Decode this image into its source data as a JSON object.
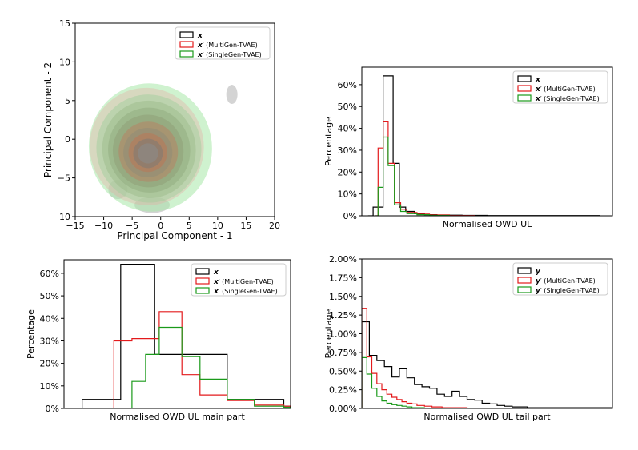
{
  "colors": {
    "real": "#000000",
    "multi": "#e31a1c",
    "single": "#1a9a1a",
    "grey_kde": "#b0b0b0"
  },
  "chart_data": [
    {
      "id": "pca",
      "type": "contour",
      "xlabel": "Principal Component - 1",
      "ylabel": "Principal Component - 2",
      "xlim": [
        -15,
        20
      ],
      "ylim": [
        -10,
        15
      ],
      "xticks": [
        -15,
        -10,
        -5,
        0,
        5,
        10,
        15,
        20
      ],
      "yticks": [
        -10,
        -5,
        0,
        5,
        10,
        15
      ],
      "xtick_labels": [
        "−15",
        "−10",
        "−5",
        "0",
        "5",
        "10",
        "15",
        "20"
      ],
      "ytick_labels": [
        "−10",
        "−5",
        "0",
        "5",
        "10",
        "15"
      ],
      "legend": [
        {
          "key": "real",
          "label": "x"
        },
        {
          "key": "multi",
          "label": "x′ (MultiGen-TVAE)"
        },
        {
          "key": "single",
          "label": "x′ (SingleGen-TVAE)"
        }
      ],
      "legend_loc": "upper right",
      "kde_center": [
        -2,
        -1.5
      ]
    },
    {
      "id": "owd-ul",
      "type": "histogram",
      "xlabel": "Normalised OWD UL",
      "ylabel": "Percentage",
      "xlim": [
        0,
        1
      ],
      "ylim": [
        0,
        0.68
      ],
      "yticks": [
        0,
        0.1,
        0.2,
        0.3,
        0.4,
        0.5,
        0.6
      ],
      "ytick_labels": [
        "0%",
        "10%",
        "20%",
        "30%",
        "40%",
        "50%",
        "60%"
      ],
      "legend": [
        {
          "key": "real",
          "label": "x"
        },
        {
          "key": "multi",
          "label": "x′ (MultiGen-TVAE)"
        },
        {
          "key": "single",
          "label": "x′ (SingleGen-TVAE)"
        }
      ],
      "legend_loc": "upper right",
      "series": [
        {
          "key": "real",
          "edges": [
            0.025,
            0.045,
            0.065,
            0.085,
            0.125,
            0.15,
            0.175,
            0.21,
            0.25,
            0.3,
            0.4,
            0.5,
            0.6,
            0.7,
            0.8,
            0.95
          ],
          "values": [
            0.0,
            0.04,
            0.04,
            0.64,
            0.24,
            0.04,
            0.02,
            0.01,
            0.005,
            0.003,
            0.002,
            0.001,
            0.001,
            0.001,
            0.001
          ]
        },
        {
          "key": "multi",
          "edges": [
            0.055,
            0.065,
            0.085,
            0.105,
            0.13,
            0.155,
            0.18,
            0.22,
            0.27,
            0.35,
            0.45
          ],
          "values": [
            0.0,
            0.31,
            0.43,
            0.24,
            0.06,
            0.03,
            0.015,
            0.008,
            0.004,
            0.001
          ]
        },
        {
          "key": "single",
          "edges": [
            0.055,
            0.065,
            0.085,
            0.105,
            0.13,
            0.155,
            0.18,
            0.22,
            0.27,
            0.35
          ],
          "values": [
            0.0,
            0.13,
            0.36,
            0.23,
            0.05,
            0.02,
            0.01,
            0.005,
            0.002
          ]
        }
      ]
    },
    {
      "id": "owd-ul-main",
      "type": "histogram",
      "xlabel": "Normalised OWD UL main part",
      "ylabel": "Percentage",
      "xlim": [
        0,
        1
      ],
      "ylim": [
        0,
        0.66
      ],
      "yticks": [
        0,
        0.1,
        0.2,
        0.3,
        0.4,
        0.5,
        0.6
      ],
      "ytick_labels": [
        "0%",
        "10%",
        "20%",
        "30%",
        "40%",
        "50%",
        "60%"
      ],
      "legend": [
        {
          "key": "real",
          "label": "x"
        },
        {
          "key": "multi",
          "label": "x′ (MultiGen-TVAE)"
        },
        {
          "key": "single",
          "label": "x′ (SingleGen-TVAE)"
        }
      ],
      "legend_loc": "upper right",
      "series": [
        {
          "key": "real",
          "edges": [
            0.08,
            0.25,
            0.4,
            0.56,
            0.72,
            0.84,
            0.97,
            1.0
          ],
          "values": [
            0.04,
            0.64,
            0.24,
            0.24,
            0.04,
            0.04,
            0.01
          ]
        },
        {
          "key": "multi",
          "edges": [
            0.22,
            0.3,
            0.42,
            0.52,
            0.6,
            0.72,
            0.84,
            0.97,
            1.0
          ],
          "values": [
            0.3,
            0.31,
            0.43,
            0.15,
            0.06,
            0.035,
            0.015,
            0.01
          ]
        },
        {
          "key": "single",
          "edges": [
            0.22,
            0.3,
            0.36,
            0.42,
            0.52,
            0.6,
            0.72,
            0.84,
            0.97,
            1.0
          ],
          "values": [
            0.0,
            0.12,
            0.24,
            0.36,
            0.23,
            0.13,
            0.04,
            0.01,
            0.005
          ]
        }
      ]
    },
    {
      "id": "owd-ul-tail",
      "type": "histogram",
      "xlabel": "Normalised OWD UL tail part",
      "ylabel": "Percentage",
      "xlim": [
        0,
        1
      ],
      "ylim": [
        0,
        0.02
      ],
      "yticks": [
        0,
        0.0025,
        0.005,
        0.0075,
        0.01,
        0.0125,
        0.015,
        0.0175,
        0.02
      ],
      "ytick_labels": [
        "0.00%",
        "0.25%",
        "0.50%",
        "0.75%",
        "1.00%",
        "1.25%",
        "1.50%",
        "1.75%",
        "2.00%"
      ],
      "legend": [
        {
          "key": "real",
          "label": "y"
        },
        {
          "key": "multi",
          "label": "y′ (MultiGen-TVAE)"
        },
        {
          "key": "single",
          "label": "y′ (SingleGen-TVAE)"
        }
      ],
      "legend_loc": "upper right",
      "series": [
        {
          "key": "real",
          "edges": [
            0.0,
            0.03,
            0.06,
            0.09,
            0.12,
            0.15,
            0.18,
            0.21,
            0.24,
            0.27,
            0.3,
            0.33,
            0.36,
            0.39,
            0.42,
            0.45,
            0.48,
            0.51,
            0.54,
            0.57,
            0.6,
            0.66,
            0.72,
            0.8,
            0.95,
            1.0
          ],
          "values": [
            0.0116,
            0.0071,
            0.0064,
            0.0056,
            0.0042,
            0.0053,
            0.0041,
            0.0032,
            0.0029,
            0.0027,
            0.0019,
            0.0016,
            0.0023,
            0.0016,
            0.0012,
            0.0011,
            0.0007,
            0.0006,
            0.0004,
            0.0003,
            0.0002,
            0.0001,
            0.0001,
            0.0001,
            0.0001
          ]
        },
        {
          "key": "multi",
          "edges": [
            0.0,
            0.02,
            0.04,
            0.06,
            0.08,
            0.1,
            0.12,
            0.14,
            0.16,
            0.18,
            0.2,
            0.22,
            0.25,
            0.28,
            0.32,
            0.36,
            0.42,
            0.5
          ],
          "values": [
            0.0134,
            0.0069,
            0.0047,
            0.0033,
            0.0025,
            0.0019,
            0.0015,
            0.0012,
            0.0009,
            0.0007,
            0.0006,
            0.0004,
            0.0003,
            0.0002,
            0.0001,
            0.0001,
            0.0
          ]
        },
        {
          "key": "single",
          "edges": [
            0.0,
            0.02,
            0.04,
            0.06,
            0.08,
            0.1,
            0.12,
            0.14,
            0.16,
            0.18,
            0.2,
            0.22,
            0.25,
            0.28,
            0.32
          ],
          "values": [
            0.0068,
            0.0046,
            0.0027,
            0.0016,
            0.001,
            0.0007,
            0.0005,
            0.0004,
            0.0003,
            0.0002,
            0.0001,
            0.0001,
            0.0,
            0.0
          ]
        }
      ]
    }
  ]
}
